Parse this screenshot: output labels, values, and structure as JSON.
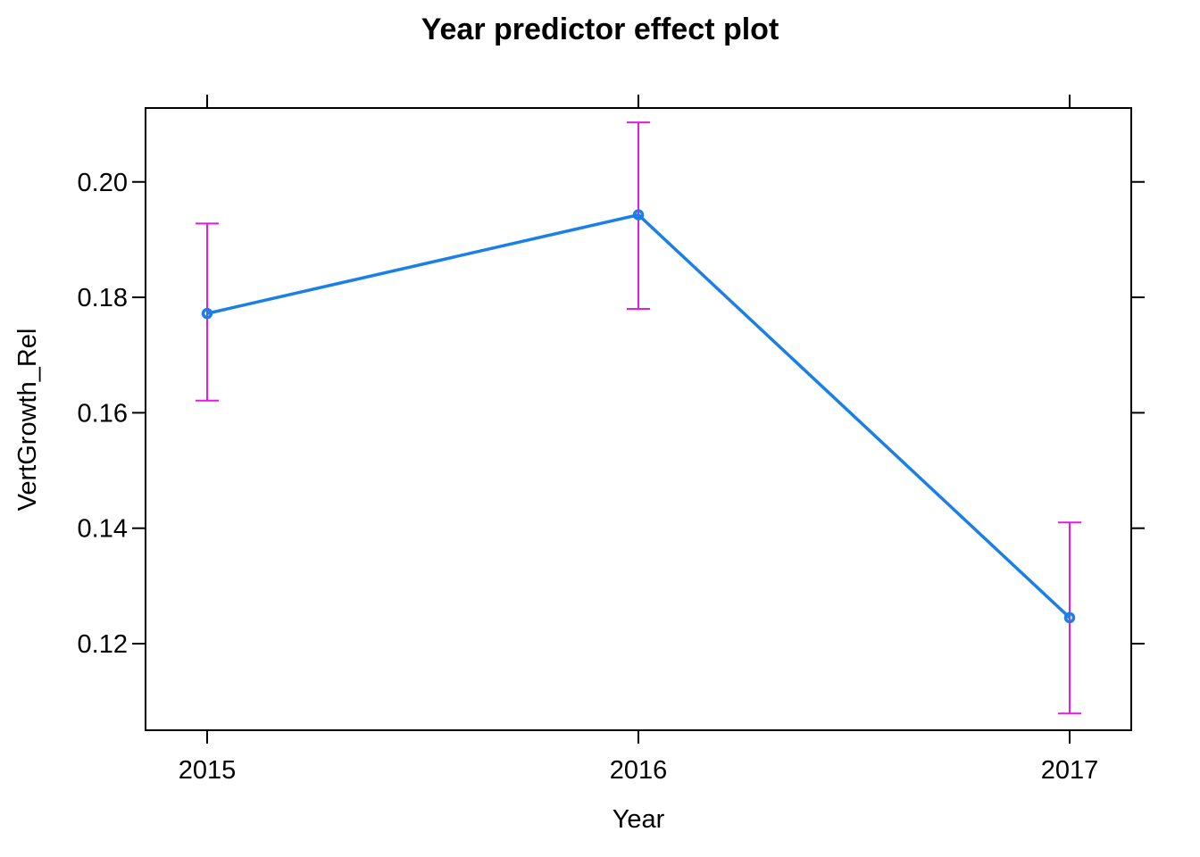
{
  "chart_data": {
    "type": "line",
    "title": "Year predictor effect plot",
    "xlabel": "Year",
    "ylabel": "VertGrowth_Rel",
    "categories": [
      "2015",
      "2016",
      "2017"
    ],
    "series": [
      {
        "values": [
          0.1772,
          0.1943,
          0.1245
        ],
        "lower": [
          0.1621,
          0.178,
          0.1079
        ],
        "upper": [
          0.1928,
          0.2103,
          0.141
        ]
      }
    ],
    "yticks": [
      "0.12",
      "0.14",
      "0.16",
      "0.18",
      "0.20"
    ],
    "ylim": [
      0.105,
      0.2128
    ],
    "grid": false,
    "legend": "none",
    "colors": {
      "line": "#1a7fe8",
      "errorbar": "#e619e6",
      "frame": "#000000"
    }
  }
}
